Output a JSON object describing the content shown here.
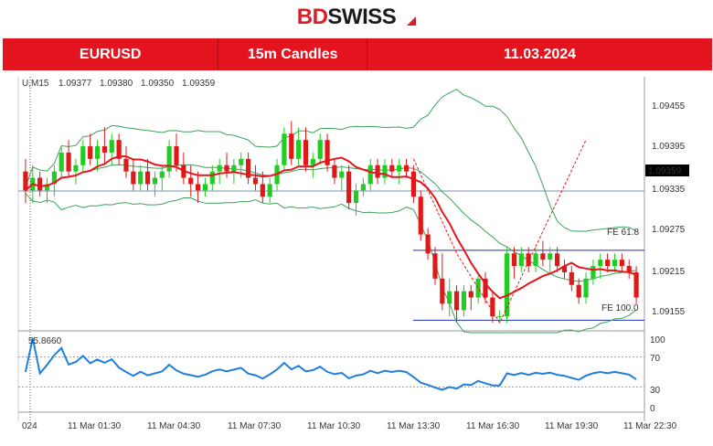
{
  "brand": {
    "part1": "BD",
    "part2": "SWISS"
  },
  "header": {
    "symbol": "EURUSD",
    "timeframe": "15m Candles",
    "date": "11.03.2024"
  },
  "chart_data": {
    "type": "candlestick",
    "info_prefix": "U,M15",
    "ohlc": [
      "1.09377",
      "1.09380",
      "1.09350",
      "1.09359"
    ],
    "price_ticks": [
      "1.09455",
      "1.09395",
      "1.09335",
      "1.09275",
      "1.09215",
      "1.09155"
    ],
    "current_price": "1.09359",
    "time_labels": [
      "024",
      "11 Mar 01:30",
      "11 Mar 04:30",
      "11 Mar 07:30",
      "11 Mar 10:30",
      "11 Mar 13:30",
      "11 Mar 16:30",
      "11 Mar 19:30",
      "11 Mar 22:30"
    ],
    "fib_labels": {
      "fe618": "FE 61.8",
      "fe100": "FE 100.0"
    },
    "fib_levels": {
      "fe618": 1.09265,
      "fe100": 1.09154
    },
    "ylim": [
      1.0914,
      1.0952
    ],
    "rsi": {
      "label": "55.8660",
      "ticks": [
        "100",
        "70",
        "30",
        "0"
      ],
      "levels": [
        70,
        30
      ]
    },
    "candles": [
      [
        1.0939,
        1.0941,
        1.0934,
        1.0936
      ],
      [
        1.0936,
        1.094,
        1.0934,
        1.0938
      ],
      [
        1.0938,
        1.0939,
        1.0935,
        1.0936
      ],
      [
        1.0936,
        1.0938,
        1.0934,
        1.0937
      ],
      [
        1.0937,
        1.094,
        1.0935,
        1.0939
      ],
      [
        1.0939,
        1.0943,
        1.0938,
        1.0942
      ],
      [
        1.0942,
        1.0944,
        1.0938,
        1.0939
      ],
      [
        1.0939,
        1.0941,
        1.0937,
        1.094
      ],
      [
        1.094,
        1.0944,
        1.0939,
        1.0943
      ],
      [
        1.0943,
        1.0945,
        1.094,
        1.0941
      ],
      [
        1.0941,
        1.0944,
        1.0939,
        1.0943
      ],
      [
        1.0943,
        1.0946,
        1.094,
        1.0942
      ],
      [
        1.0942,
        1.0945,
        1.094,
        1.0944
      ],
      [
        1.0944,
        1.0945,
        1.094,
        1.0941
      ],
      [
        1.0941,
        1.0943,
        1.0938,
        1.0939
      ],
      [
        1.0939,
        1.0941,
        1.0936,
        1.0937
      ],
      [
        1.0937,
        1.094,
        1.0936,
        1.0939
      ],
      [
        1.0939,
        1.0941,
        1.0936,
        1.0937
      ],
      [
        1.0937,
        1.0939,
        1.0935,
        1.0938
      ],
      [
        1.0938,
        1.094,
        1.0936,
        1.0939
      ],
      [
        1.0939,
        1.0944,
        1.0938,
        1.0943
      ],
      [
        1.0943,
        1.0945,
        1.0939,
        1.094
      ],
      [
        1.094,
        1.0942,
        1.0937,
        1.0938
      ],
      [
        1.0938,
        1.094,
        1.0935,
        1.0937
      ],
      [
        1.0937,
        1.0939,
        1.0934,
        1.0936
      ],
      [
        1.0936,
        1.0938,
        1.0935,
        1.0937
      ],
      [
        1.0937,
        1.094,
        1.0936,
        1.0939
      ],
      [
        1.0939,
        1.0941,
        1.0937,
        1.094
      ],
      [
        1.094,
        1.0942,
        1.0938,
        1.0939
      ],
      [
        1.0939,
        1.0941,
        1.0937,
        1.094
      ],
      [
        1.094,
        1.0942,
        1.0938,
        1.0941
      ],
      [
        1.0941,
        1.0942,
        1.0937,
        1.0938
      ],
      [
        1.0938,
        1.094,
        1.0936,
        1.0937
      ],
      [
        1.0937,
        1.0939,
        1.0934,
        1.0935
      ],
      [
        1.0935,
        1.0938,
        1.0934,
        1.0937
      ],
      [
        1.0937,
        1.0941,
        1.0936,
        1.094
      ],
      [
        1.094,
        1.0946,
        1.0939,
        1.0945
      ],
      [
        1.0945,
        1.0947,
        1.094,
        1.0941
      ],
      [
        1.0941,
        1.0946,
        1.094,
        1.0944
      ],
      [
        1.0944,
        1.0946,
        1.0939,
        1.094
      ],
      [
        1.094,
        1.0942,
        1.0938,
        1.0941
      ],
      [
        1.0941,
        1.0945,
        1.094,
        1.0944
      ],
      [
        1.0944,
        1.0945,
        1.0939,
        1.094
      ],
      [
        1.094,
        1.0941,
        1.0937,
        1.0938
      ],
      [
        1.0938,
        1.094,
        1.0936,
        1.0939
      ],
      [
        1.0939,
        1.094,
        1.0933,
        1.0934
      ],
      [
        1.0934,
        1.0937,
        1.0932,
        1.0936
      ],
      [
        1.0936,
        1.0938,
        1.0935,
        1.0937
      ],
      [
        1.0937,
        1.0941,
        1.0936,
        1.094
      ],
      [
        1.094,
        1.0941,
        1.0937,
        1.0938
      ],
      [
        1.0938,
        1.0941,
        1.0937,
        1.094
      ],
      [
        1.094,
        1.0941,
        1.0938,
        1.0939
      ],
      [
        1.0939,
        1.0941,
        1.0937,
        1.094
      ],
      [
        1.094,
        1.0941,
        1.0938,
        1.0939
      ],
      [
        1.0939,
        1.094,
        1.0934,
        1.0935
      ],
      [
        1.0935,
        1.0936,
        1.0928,
        1.0929
      ],
      [
        1.0929,
        1.093,
        1.0925,
        1.0926
      ],
      [
        1.0926,
        1.0927,
        1.0921,
        1.0922
      ],
      [
        1.0922,
        1.0926,
        1.0917,
        1.0918
      ],
      [
        1.0918,
        1.0922,
        1.0916,
        1.092
      ],
      [
        1.092,
        1.0921,
        1.0915,
        1.0917
      ],
      [
        1.0917,
        1.0921,
        1.0916,
        1.092
      ],
      [
        1.092,
        1.0921,
        1.0917,
        1.0919
      ],
      [
        1.0919,
        1.0923,
        1.0918,
        1.0922
      ],
      [
        1.0922,
        1.0923,
        1.0918,
        1.0919
      ],
      [
        1.0919,
        1.092,
        1.0915,
        1.0916
      ],
      [
        1.0916,
        1.0917,
        1.0915,
        1.0916
      ],
      [
        1.0916,
        1.0927,
        1.0915,
        1.0926
      ],
      [
        1.0926,
        1.0927,
        1.0922,
        1.0924
      ],
      [
        1.0924,
        1.0927,
        1.0923,
        1.0926
      ],
      [
        1.0926,
        1.0927,
        1.0923,
        1.0924
      ],
      [
        1.0924,
        1.0927,
        1.0923,
        1.0926
      ],
      [
        1.0926,
        1.0928,
        1.0924,
        1.0925
      ],
      [
        1.0925,
        1.0927,
        1.0923,
        1.0926
      ],
      [
        1.0926,
        1.0927,
        1.0923,
        1.0924
      ],
      [
        1.0924,
        1.0925,
        1.0922,
        1.0923
      ],
      [
        1.0923,
        1.0924,
        1.092,
        1.0921
      ],
      [
        1.0921,
        1.0922,
        1.0918,
        1.0919
      ],
      [
        1.0919,
        1.0923,
        1.0918,
        1.0922
      ],
      [
        1.0922,
        1.0925,
        1.0921,
        1.0924
      ],
      [
        1.0924,
        1.0926,
        1.0922,
        1.0925
      ],
      [
        1.0925,
        1.0926,
        1.0923,
        1.0924
      ],
      [
        1.0924,
        1.0926,
        1.0923,
        1.0925
      ],
      [
        1.0925,
        1.0926,
        1.0923,
        1.0924
      ],
      [
        1.0924,
        1.0925,
        1.0922,
        1.0923
      ],
      [
        1.0923,
        1.0924,
        1.0918,
        1.0919
      ]
    ]
  }
}
